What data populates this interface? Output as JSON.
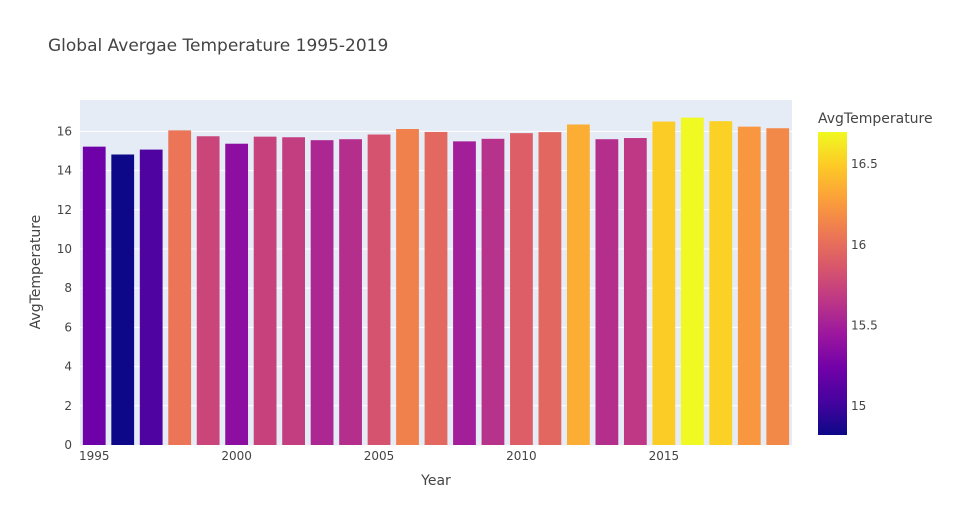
{
  "chart_data": {
    "type": "bar",
    "title": "Global Avergae Temperature 1995-2019",
    "xlabel": "Year",
    "ylabel": "AvgTemperature",
    "x": [
      1995,
      1996,
      1997,
      1998,
      1999,
      2000,
      2001,
      2002,
      2003,
      2004,
      2005,
      2006,
      2007,
      2008,
      2009,
      2010,
      2011,
      2012,
      2013,
      2014,
      2015,
      2016,
      2017,
      2018,
      2019
    ],
    "values": [
      15.22,
      14.82,
      15.07,
      16.05,
      15.75,
      15.37,
      15.73,
      15.7,
      15.55,
      15.6,
      15.84,
      16.12,
      15.97,
      15.49,
      15.62,
      15.91,
      15.96,
      16.35,
      15.6,
      15.66,
      16.5,
      16.7,
      16.52,
      16.24,
      16.16
    ],
    "x_ticks": [
      "1995",
      "2000",
      "2005",
      "2010",
      "2015"
    ],
    "y_ticks": [
      "0",
      "2",
      "4",
      "6",
      "8",
      "10",
      "12",
      "14",
      "16"
    ],
    "ylim": [
      0,
      17.6
    ],
    "grid": true,
    "colorbar": {
      "title": "AvgTemperature",
      "range": [
        14.82,
        16.7
      ],
      "ticks": [
        "15",
        "15.5",
        "16",
        "16.5"
      ],
      "colorscale": [
        "#0d0887",
        "#46039f",
        "#7201a8",
        "#9c179e",
        "#bd3786",
        "#d8576b",
        "#ed7953",
        "#fb9f3a",
        "#fdca26",
        "#f0f921"
      ]
    },
    "plot_background": "#e5ecf6"
  }
}
